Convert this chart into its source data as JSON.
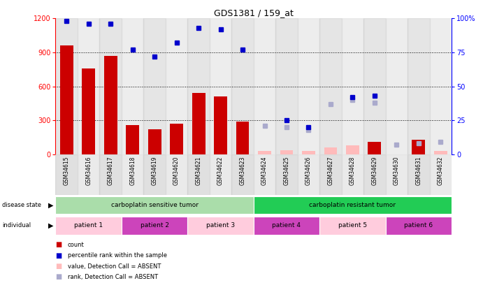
{
  "title": "GDS1381 / 159_at",
  "samples": [
    "GSM34615",
    "GSM34616",
    "GSM34617",
    "GSM34618",
    "GSM34619",
    "GSM34620",
    "GSM34621",
    "GSM34622",
    "GSM34623",
    "GSM34624",
    "GSM34625",
    "GSM34626",
    "GSM34627",
    "GSM34628",
    "GSM34629",
    "GSM34630",
    "GSM34631",
    "GSM34632"
  ],
  "count_values": [
    960,
    760,
    870,
    255,
    220,
    270,
    540,
    510,
    290,
    null,
    null,
    null,
    null,
    null,
    110,
    null,
    130,
    null
  ],
  "count_absent": [
    null,
    null,
    null,
    null,
    null,
    null,
    null,
    null,
    null,
    30,
    35,
    30,
    60,
    80,
    null,
    null,
    null,
    30
  ],
  "rank_values": [
    98,
    96,
    96,
    77,
    72,
    82,
    93,
    92,
    77,
    null,
    null,
    null,
    null,
    null,
    null,
    null,
    null,
    null
  ],
  "rank_absent": [
    null,
    null,
    null,
    null,
    null,
    null,
    null,
    null,
    null,
    21,
    20,
    18,
    37,
    40,
    38,
    7,
    8,
    9
  ],
  "rank_present_resistant": [
    null,
    null,
    null,
    null,
    null,
    null,
    null,
    null,
    null,
    null,
    25,
    20,
    null,
    42,
    43,
    null,
    null,
    null
  ],
  "disease_state_groups": [
    {
      "label": "carboplatin sensitive tumor",
      "start": 0,
      "end": 9,
      "color": "#aaddaa"
    },
    {
      "label": "carboplatin resistant tumor",
      "start": 9,
      "end": 18,
      "color": "#22cc55"
    }
  ],
  "individual_groups": [
    {
      "label": "patient 1",
      "start": 0,
      "end": 3,
      "color": "#ffbbdd"
    },
    {
      "label": "patient 2",
      "start": 3,
      "end": 6,
      "color": "#dd55cc"
    },
    {
      "label": "patient 3",
      "start": 6,
      "end": 9,
      "color": "#ffbbdd"
    },
    {
      "label": "patient 4",
      "start": 9,
      "end": 12,
      "color": "#dd55cc"
    },
    {
      "label": "patient 5",
      "start": 12,
      "end": 15,
      "color": "#ffbbdd"
    },
    {
      "label": "patient 6",
      "start": 15,
      "end": 18,
      "color": "#dd55cc"
    }
  ],
  "ylim_left": [
    0,
    1200
  ],
  "ylim_right": [
    0,
    100
  ],
  "yticks_left": [
    0,
    300,
    600,
    900,
    1200
  ],
  "yticks_right": [
    0,
    25,
    50,
    75,
    100
  ],
  "bar_color": "#cc0000",
  "bar_absent_color": "#ffbbbb",
  "dot_color": "#0000cc",
  "dot_absent_color": "#aaaacc",
  "background_color": "#ffffff",
  "col_bg_even": "#cccccc",
  "col_bg_odd": "#dddddd"
}
